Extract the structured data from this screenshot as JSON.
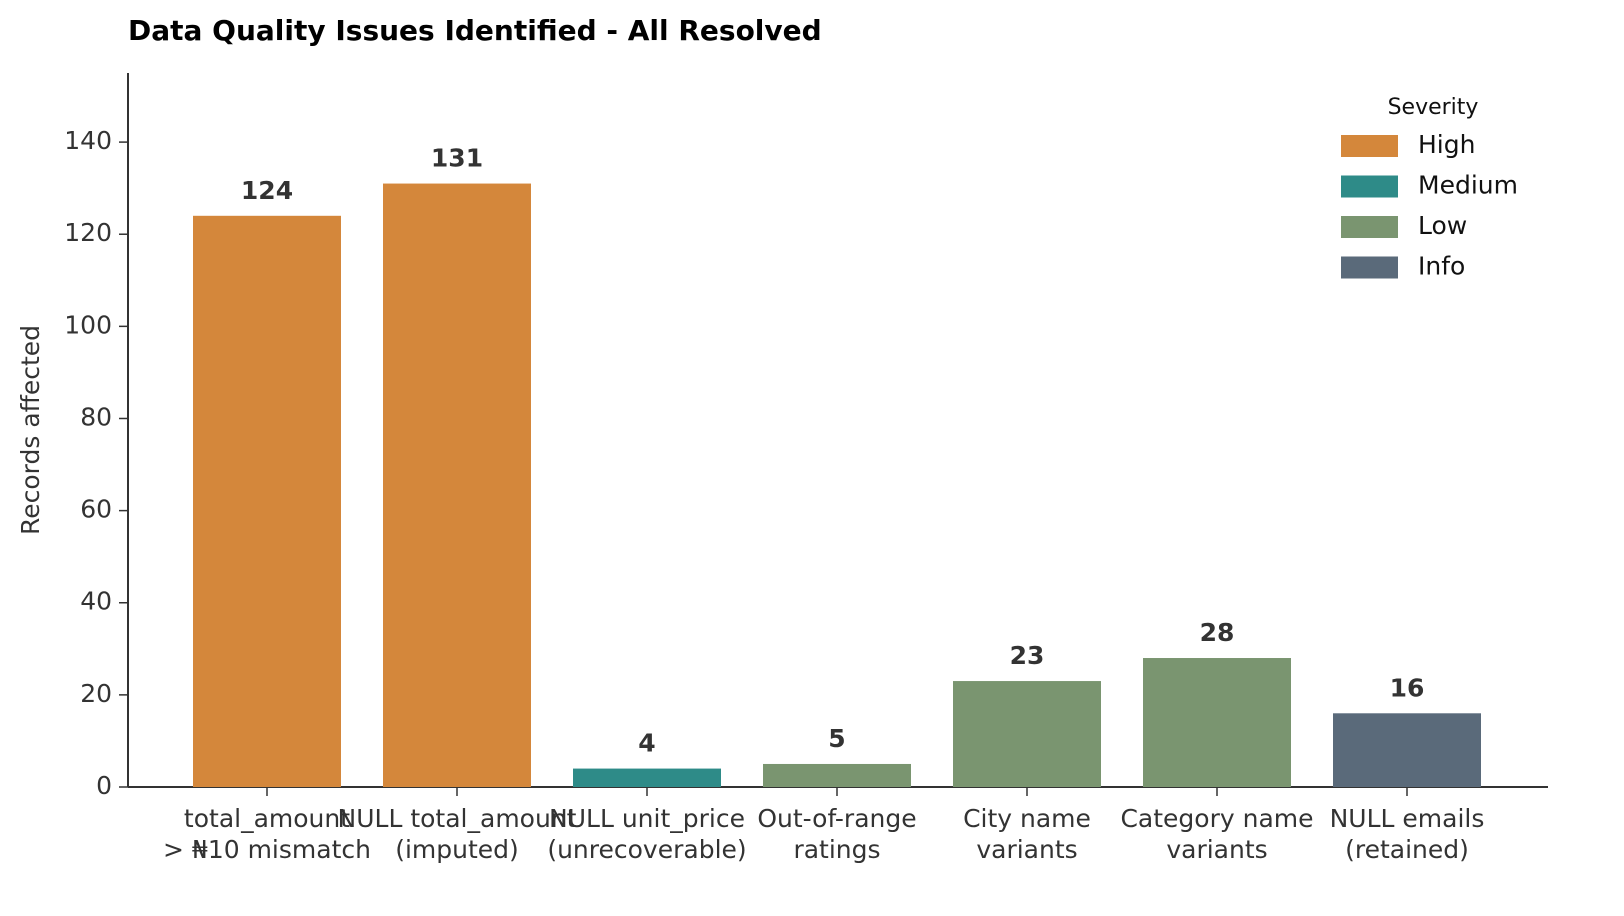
{
  "chart_data": {
    "type": "bar",
    "title": "Data Quality Issues Identified - All Resolved",
    "y_label": "Records affected",
    "legend_title": "Severity",
    "categories": [
      "total_amount\n> ₦10 mismatch",
      "NULL total_amount\n(imputed)",
      "NULL unit_price\n(unrecoverable)",
      "Out-of-range\nratings",
      "City name\nvariants",
      "Category name\nvariants",
      "NULL emails\n(retained)"
    ],
    "series": [
      {
        "name": "High",
        "color": "#d4873b",
        "values": [
          124,
          131,
          null,
          null,
          null,
          null,
          null
        ]
      },
      {
        "name": "Medium",
        "color": "#2e8b88",
        "values": [
          null,
          null,
          4,
          null,
          null,
          null,
          null
        ]
      },
      {
        "name": "Low",
        "color": "#7a9570",
        "values": [
          null,
          null,
          null,
          5,
          23,
          28,
          null
        ]
      },
      {
        "name": "Info",
        "color": "#5a6a7a",
        "values": [
          null,
          null,
          null,
          null,
          null,
          null,
          16
        ]
      }
    ],
    "ylim": [
      0,
      155
    ],
    "yticks": [
      0,
      20,
      40,
      60,
      80,
      100,
      120,
      140
    ],
    "legend": "upper right",
    "grid": false
  }
}
